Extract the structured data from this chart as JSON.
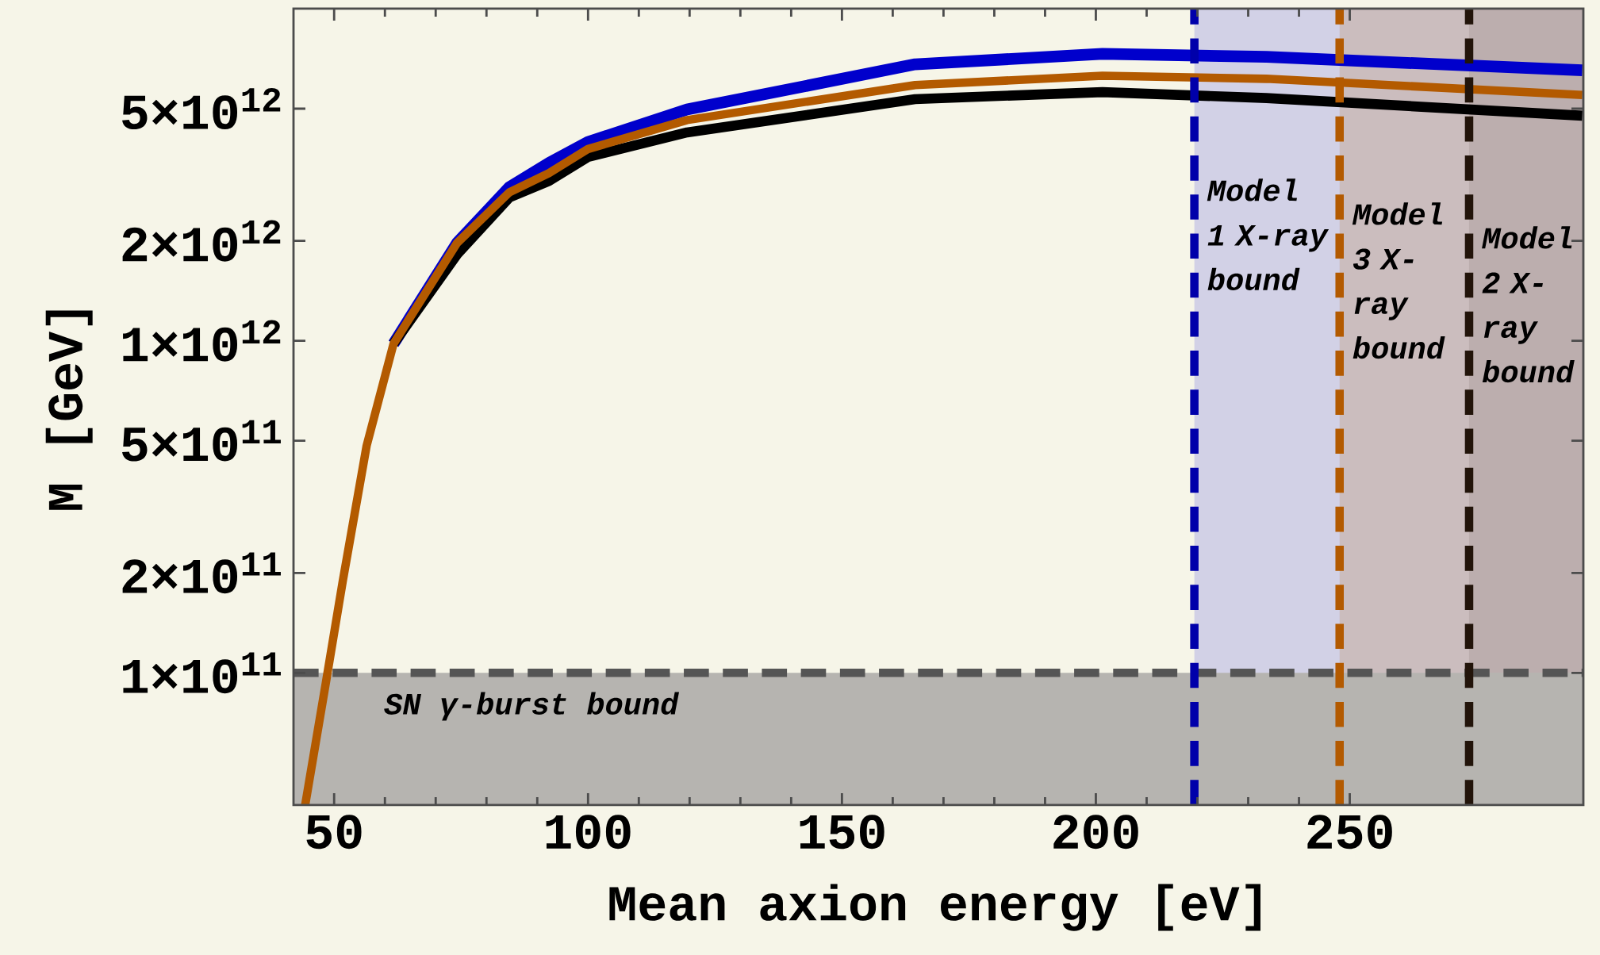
{
  "chart_data": {
    "type": "line",
    "xlabel": "Mean axion energy [eV]",
    "ylabel": "M [GeV]",
    "log": "y",
    "xlim": [
      42,
      296
    ],
    "ylim": [
      40000000000.0,
      10000000000000.0
    ],
    "xticks": [
      50,
      100,
      150,
      200,
      250
    ],
    "yticks": [
      {
        "value": 100000000000.0,
        "label": "1×10$^{11}$"
      },
      {
        "value": 200000000000.0,
        "label": "2×10$^{11}$"
      },
      {
        "value": 500000000000.0,
        "label": "5×10$^{11}$"
      },
      {
        "value": 1000000000000.0,
        "label": "1×10$^{12}$"
      },
      {
        "value": 2000000000000.0,
        "label": "2×10$^{12}$"
      },
      {
        "value": 5000000000000.0,
        "label": "5×10$^{12}$"
      }
    ],
    "x": [
      44.3,
      48.4,
      51.7,
      56.4,
      61.7,
      74.2,
      84.5,
      92.3,
      100,
      119.5,
      164.4,
      201.3,
      233.6,
      295.8
    ],
    "series": [
      {
        "color": "#0000cc",
        "values": [
          null,
          null,
          null,
          null,
          980000000000.0,
          1970000000000.0,
          2900000000000.0,
          3430000000000.0,
          3970000000000.0,
          4970000000000.0,
          6800000000000.0,
          7310000000000.0,
          7160000000000.0,
          6520000000000.0
        ]
      },
      {
        "color": "#000000",
        "values": [
          null,
          null,
          null,
          null,
          980000000000.0,
          1820000000000.0,
          2700000000000.0,
          3030000000000.0,
          3580000000000.0,
          4240000000000.0,
          5340000000000.0,
          5610000000000.0,
          5380000000000.0,
          4760000000000.0
        ]
      },
      {
        "color": "#b35a00",
        "values": [
          40000000000.0,
          94000000000.0,
          189000000000.0,
          483000000000.0,
          980000000000.0,
          1970000000000.0,
          2800000000000.0,
          3200000000000.0,
          3780000000000.0,
          4620000000000.0,
          5890000000000.0,
          6280000000000.0,
          6150000000000.0,
          5500000000000.0
        ]
      }
    ],
    "bands": [
      {
        "axis": "x",
        "from": 219.4,
        "to": 296,
        "label": "Model 1 X-ray bound",
        "color": "#d2d1e6"
      },
      {
        "axis": "x",
        "from": 248,
        "to": 296,
        "label": "Model 3 X-ray bound",
        "color": "#cbbdbe"
      },
      {
        "axis": "x",
        "from": 273.5,
        "to": 296,
        "label": "Model 2 X-ray bound",
        "color": "#bcaeae"
      },
      {
        "axis": "y",
        "from": 40000000000.0,
        "to": 100000000000.0,
        "label": "SN γ-burst bound",
        "color": "#b6b4b0"
      }
    ],
    "ref_lines": [
      {
        "axis": "y",
        "value": 100000000000.0,
        "color": "#555555",
        "line_style": "dashed"
      },
      {
        "axis": "x",
        "value": 219.4,
        "color": "#0000aa",
        "line_style": "dashed"
      },
      {
        "axis": "x",
        "value": 248,
        "color": "#b35a00",
        "line_style": "dashed"
      },
      {
        "axis": "x",
        "value": 273.5,
        "color": "#22140a",
        "line_style": "dashed"
      }
    ]
  }
}
